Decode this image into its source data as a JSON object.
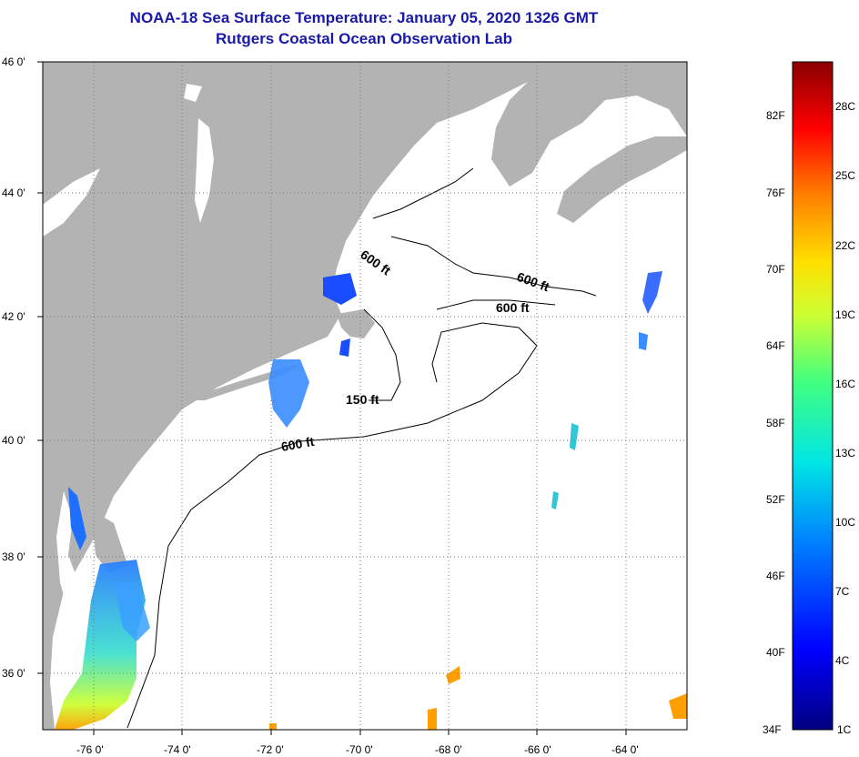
{
  "title": {
    "line1": "NOAA-18 Sea Surface Temperature:  January 05, 2020 1326 GMT",
    "line2": "Rutgers Coastal Ocean Observation Lab"
  },
  "map": {
    "lat_labels": [
      "46 0'",
      "44 0'",
      "42 0'",
      "40 0'",
      "38 0'",
      "36 0'"
    ],
    "lon_labels": [
      "-76 0'",
      "-74 0'",
      "-72 0'",
      "-70 0'",
      "-68 0'",
      "-66 0'",
      "-64 0'"
    ],
    "contour_labels": [
      "600 ft",
      "600 ft",
      "600 ft",
      "150 ft",
      "600 ft"
    ],
    "colors": {
      "land": "#b3b3b3",
      "ocean": "#ffffff",
      "grid": "#7a7a7a",
      "title": "#1a1aa8"
    }
  },
  "colorbar": {
    "fahrenheit": [
      "82F",
      "76F",
      "70F",
      "64F",
      "58F",
      "52F",
      "46F",
      "40F",
      "34F"
    ],
    "celsius": [
      "28C",
      "25C",
      "22C",
      "19C",
      "16C",
      "13C",
      "10C",
      "7C",
      "4C",
      "1C"
    ],
    "stops": [
      "#000080",
      "#0000ff",
      "#0080ff",
      "#00e5e5",
      "#40ff80",
      "#ccff33",
      "#ffe000",
      "#ff8000",
      "#ff0000",
      "#8b0000"
    ]
  }
}
